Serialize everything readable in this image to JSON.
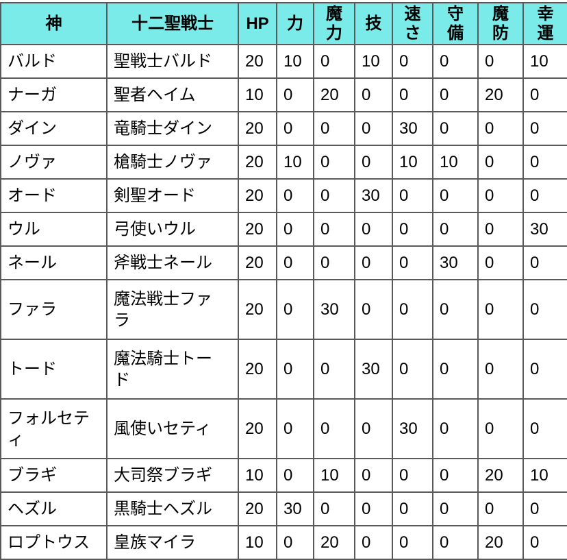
{
  "colors": {
    "header_bg": "#7aebe8",
    "border": "#595959",
    "text": "#000000",
    "row_bg": "#ffffff"
  },
  "table": {
    "columns": [
      {
        "id": "god",
        "label": "神"
      },
      {
        "id": "warrior",
        "label": "十二聖戦士"
      },
      {
        "id": "hp",
        "label": "HP"
      },
      {
        "id": "str",
        "label": "力"
      },
      {
        "id": "mag",
        "label": "魔\n力"
      },
      {
        "id": "skl",
        "label": "技"
      },
      {
        "id": "spd",
        "label": "速\nさ"
      },
      {
        "id": "def",
        "label": "守\n備"
      },
      {
        "id": "res",
        "label": "魔\n防"
      },
      {
        "id": "lck",
        "label": "幸\n運"
      }
    ],
    "rows": [
      {
        "size": "single",
        "cells": [
          "バルド",
          "聖戦士バルド",
          "20",
          "10",
          "0",
          "10",
          "0",
          "0",
          "0",
          "10"
        ]
      },
      {
        "size": "single",
        "cells": [
          "ナーガ",
          "聖者ヘイム",
          "10",
          "0",
          "20",
          "0",
          "0",
          "0",
          "20",
          "0"
        ]
      },
      {
        "size": "single",
        "cells": [
          "ダイン",
          "竜騎士ダイン",
          "20",
          "0",
          "0",
          "0",
          "30",
          "0",
          "0",
          "0"
        ]
      },
      {
        "size": "single",
        "cells": [
          "ノヴァ",
          "槍騎士ノヴァ",
          "20",
          "10",
          "0",
          "0",
          "10",
          "10",
          "0",
          "0"
        ]
      },
      {
        "size": "single",
        "cells": [
          "オード",
          "剣聖オード",
          "20",
          "0",
          "0",
          "30",
          "0",
          "0",
          "0",
          "0"
        ]
      },
      {
        "size": "single",
        "cells": [
          "ウル",
          "弓使いウル",
          "20",
          "0",
          "0",
          "0",
          "0",
          "0",
          "0",
          "30"
        ]
      },
      {
        "size": "single",
        "cells": [
          "ネール",
          "斧戦士ネール",
          "20",
          "0",
          "0",
          "0",
          "0",
          "30",
          "0",
          "0"
        ]
      },
      {
        "size": "double",
        "cells": [
          "ファラ",
          "魔法戦士ファ\nラ",
          "20",
          "0",
          "30",
          "0",
          "0",
          "0",
          "0",
          "0"
        ]
      },
      {
        "size": "double",
        "cells": [
          "トード",
          "魔法騎士トー\nド",
          "20",
          "0",
          "0",
          "30",
          "0",
          "0",
          "0",
          "0"
        ]
      },
      {
        "size": "double",
        "cells": [
          "フォルセテ\nィ",
          "風使いセティ",
          "20",
          "0",
          "0",
          "0",
          "30",
          "0",
          "0",
          "0"
        ]
      },
      {
        "size": "single",
        "cells": [
          "ブラギ",
          "大司祭ブラギ",
          "10",
          "0",
          "10",
          "0",
          "0",
          "0",
          "20",
          "10"
        ]
      },
      {
        "size": "single",
        "cells": [
          "ヘズル",
          "黒騎士ヘズル",
          "20",
          "30",
          "0",
          "0",
          "0",
          "0",
          "0",
          "0"
        ]
      },
      {
        "size": "single",
        "cells": [
          "ロプトウス",
          "皇族マイラ",
          "10",
          "0",
          "20",
          "0",
          "0",
          "0",
          "20",
          "0"
        ]
      }
    ]
  }
}
